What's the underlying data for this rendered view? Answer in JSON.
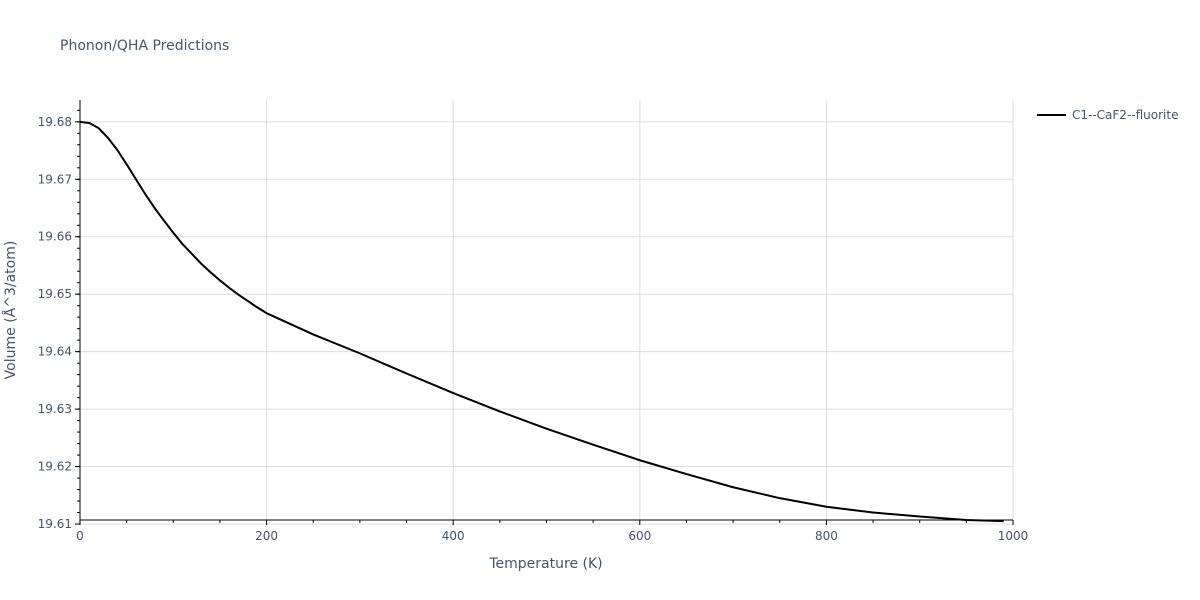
{
  "chart_data": {
    "type": "line",
    "title": "Phonon/QHA Predictions",
    "xlabel": "Temperature (K)",
    "ylabel": "Volume (Å^3/atom)",
    "xlim": [
      0,
      1000
    ],
    "ylim": [
      19.6107,
      19.6838
    ],
    "xticks": [
      0,
      200,
      400,
      600,
      800,
      1000
    ],
    "yticks": [
      19.61,
      19.62,
      19.63,
      19.64,
      19.65,
      19.66,
      19.67,
      19.68
    ],
    "xtick_labels": [
      "0",
      "200",
      "400",
      "600",
      "800",
      "1000"
    ],
    "ytick_labels": [
      "19.61",
      "19.62",
      "19.63",
      "19.64",
      "19.65",
      "19.66",
      "19.67",
      "19.68"
    ],
    "grid": true,
    "legend_position": "top-right",
    "series": [
      {
        "name": "C1--CaF2--fluorite",
        "color": "#000000",
        "x": [
          0,
          10,
          20,
          30,
          40,
          50,
          60,
          70,
          80,
          90,
          100,
          110,
          120,
          130,
          140,
          150,
          160,
          170,
          180,
          190,
          200,
          250,
          300,
          350,
          400,
          450,
          500,
          550,
          600,
          650,
          700,
          750,
          800,
          850,
          900,
          950,
          990
        ],
        "y": [
          19.68,
          19.6798,
          19.6789,
          19.6772,
          19.6751,
          19.6726,
          19.67,
          19.6674,
          19.665,
          19.6628,
          19.6607,
          19.6587,
          19.657,
          19.6553,
          19.6538,
          19.6524,
          19.6511,
          19.6499,
          19.6488,
          19.6477,
          19.6467,
          19.643,
          19.6397,
          19.6362,
          19.6328,
          19.6296,
          19.6266,
          19.6238,
          19.6211,
          19.6187,
          19.6164,
          19.6145,
          19.613,
          19.612,
          19.6113,
          19.6107,
          19.6105
        ]
      }
    ]
  }
}
